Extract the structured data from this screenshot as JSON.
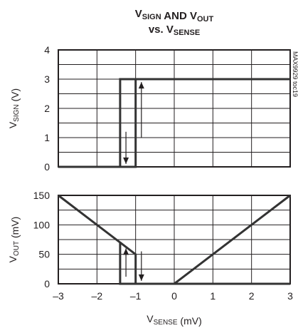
{
  "chart_data": [
    {
      "type": "line",
      "title": "VSIGN AND VOUT vs. VSENSE",
      "title_parts": {
        "line1": [
          {
            "t": "V",
            "sub": "SIGN"
          },
          {
            "t": " AND "
          },
          {
            "t": "V",
            "sub": "OUT"
          }
        ],
        "line2": [
          {
            "t": "vs. "
          },
          {
            "t": "V",
            "sub": "SENSE"
          }
        ]
      },
      "ylabel": "VSIGN (V)",
      "ylabel_parts": [
        {
          "t": "V",
          "sub": "SIGN"
        },
        {
          "t": " (V)"
        }
      ],
      "xlim": [
        -3,
        3
      ],
      "ylim": [
        0,
        4
      ],
      "yticks": [
        "0",
        "1",
        "2",
        "3",
        "4"
      ],
      "grid": true,
      "series": [
        {
          "x": [
            -3,
            -1.4,
            -1.4,
            3
          ],
          "y": [
            0,
            0,
            3,
            3
          ]
        },
        {
          "x": [
            -3,
            -1.0,
            -1.0,
            3
          ],
          "y": [
            0,
            0,
            3,
            3
          ]
        }
      ],
      "annotations": [
        {
          "kind": "arrow-down",
          "x": -1.25,
          "y_from": 1.2,
          "y_to": 0.1
        },
        {
          "kind": "arrow-up",
          "x": -0.85,
          "y_from": 1.0,
          "y_to": 2.9
        }
      ],
      "watermark": "MAX9929 toc19"
    },
    {
      "type": "line",
      "ylabel": "VOUT (mV)",
      "ylabel_parts": [
        {
          "t": "V",
          "sub": "OUT"
        },
        {
          "t": " (mV)"
        }
      ],
      "xlabel": "VSENSE (mV)",
      "xlabel_parts": [
        {
          "t": "V",
          "sub": "SENSE"
        },
        {
          "t": " (mV)"
        }
      ],
      "xlim": [
        -3,
        3
      ],
      "ylim": [
        0,
        150
      ],
      "xticks": [
        "-3",
        "-2",
        "-1",
        "0",
        "1",
        "2",
        "3"
      ],
      "yticks": [
        "0",
        "50",
        "100",
        "150"
      ],
      "grid": true,
      "series": [
        {
          "x": [
            -3,
            -1.4,
            -1.4,
            3
          ],
          "y": [
            150,
            70,
            0,
            0
          ]
        },
        {
          "x": [
            -1.4,
            -1.0,
            -1.0,
            0,
            3
          ],
          "y": [
            70,
            50,
            0,
            0,
            150
          ]
        }
      ],
      "annotations": [
        {
          "kind": "arrow-up",
          "x": -1.25,
          "y_from": 12,
          "y_to": 60
        },
        {
          "kind": "arrow-down",
          "x": -0.85,
          "y_from": 55,
          "y_to": 5
        }
      ]
    }
  ]
}
